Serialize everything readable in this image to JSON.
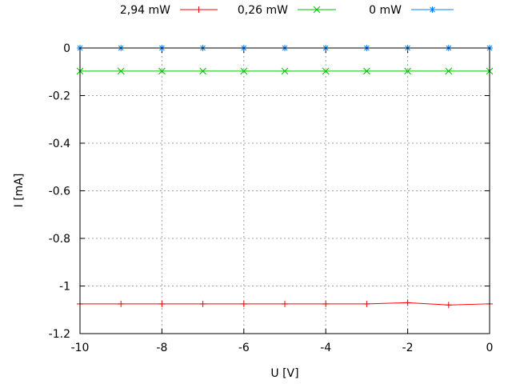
{
  "chart_data": {
    "type": "line",
    "title": "",
    "xlabel": "U [V]",
    "ylabel": "I [mA]",
    "xlim": [
      -10,
      0
    ],
    "ylim": [
      -1.2,
      0
    ],
    "xticks": [
      -10,
      -8,
      -6,
      -4,
      -2,
      0
    ],
    "xtick_labels": [
      "-10",
      "-8",
      "-6",
      "-4",
      "-2",
      "0"
    ],
    "yticks": [
      0,
      -0.2,
      -0.4,
      -0.6,
      -0.8,
      -1,
      -1.2
    ],
    "ytick_labels": [
      "0",
      "-0.2",
      "-0.4",
      "-0.6",
      "-0.8",
      "-1",
      "-1.2"
    ],
    "grid": true,
    "legend_placement": "top",
    "x": [
      -10,
      -9,
      -8,
      -7,
      -6,
      -5,
      -4,
      -3,
      -2,
      -1,
      0
    ],
    "series": [
      {
        "name": "2,94 mW",
        "color": "#ff0000",
        "marker": "plus",
        "values": [
          -1.075,
          -1.075,
          -1.075,
          -1.075,
          -1.075,
          -1.075,
          -1.075,
          -1.075,
          -1.07,
          -1.08,
          -1.075
        ]
      },
      {
        "name": "0,26 mW",
        "color": "#00c000",
        "marker": "cross",
        "values": [
          -0.097,
          -0.097,
          -0.097,
          -0.097,
          -0.097,
          -0.097,
          -0.097,
          -0.097,
          -0.097,
          -0.097,
          -0.097
        ]
      },
      {
        "name": "0 mW",
        "color": "#0080ff",
        "marker": "star",
        "values": [
          0,
          0,
          0,
          0,
          0,
          0,
          0,
          0,
          0,
          0,
          0
        ]
      }
    ]
  }
}
